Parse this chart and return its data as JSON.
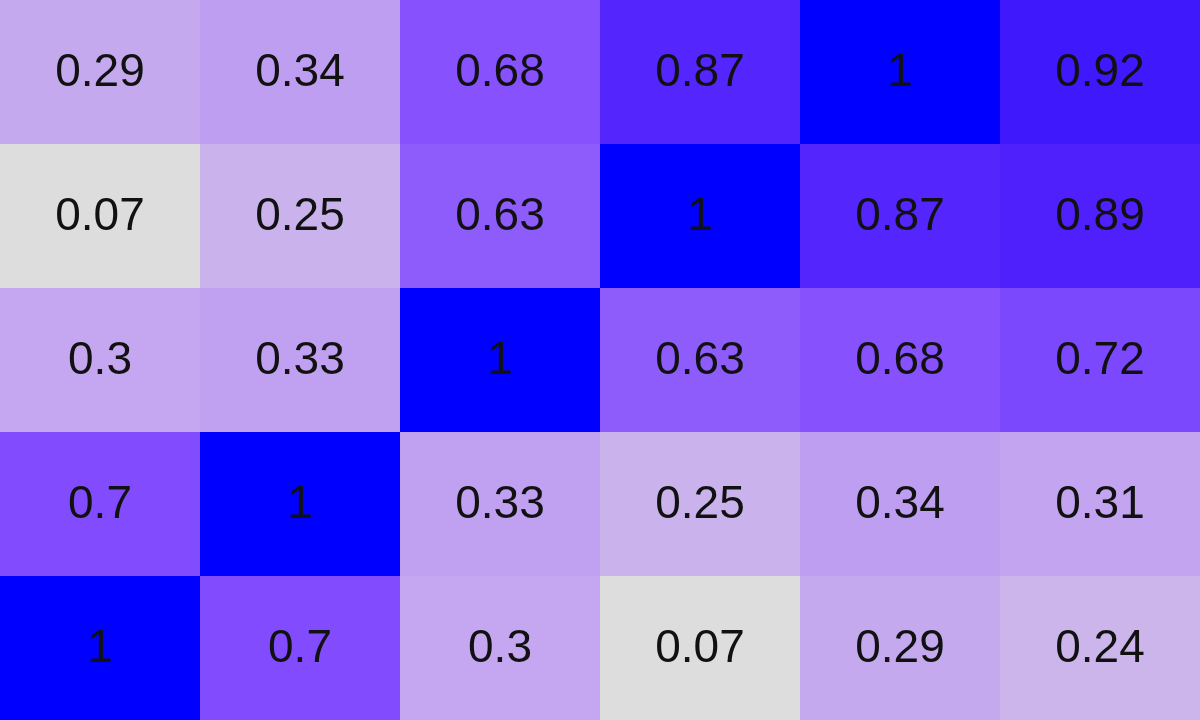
{
  "chart_data": {
    "type": "heatmap",
    "categories": [
      null,
      null,
      null,
      null,
      null,
      null
    ],
    "y_categories": [
      null,
      null,
      null,
      null,
      null
    ],
    "cells": [
      [
        0.29,
        0.34,
        0.68,
        0.87,
        1,
        0.92
      ],
      [
        0.07,
        0.25,
        0.63,
        1,
        0.87,
        0.89
      ],
      [
        0.3,
        0.33,
        1,
        0.63,
        0.68,
        0.72
      ],
      [
        0.7,
        1,
        0.33,
        0.25,
        0.34,
        0.31
      ],
      [
        1,
        0.7,
        0.3,
        0.07,
        0.29,
        0.24
      ]
    ],
    "data_labels": true
  }
}
